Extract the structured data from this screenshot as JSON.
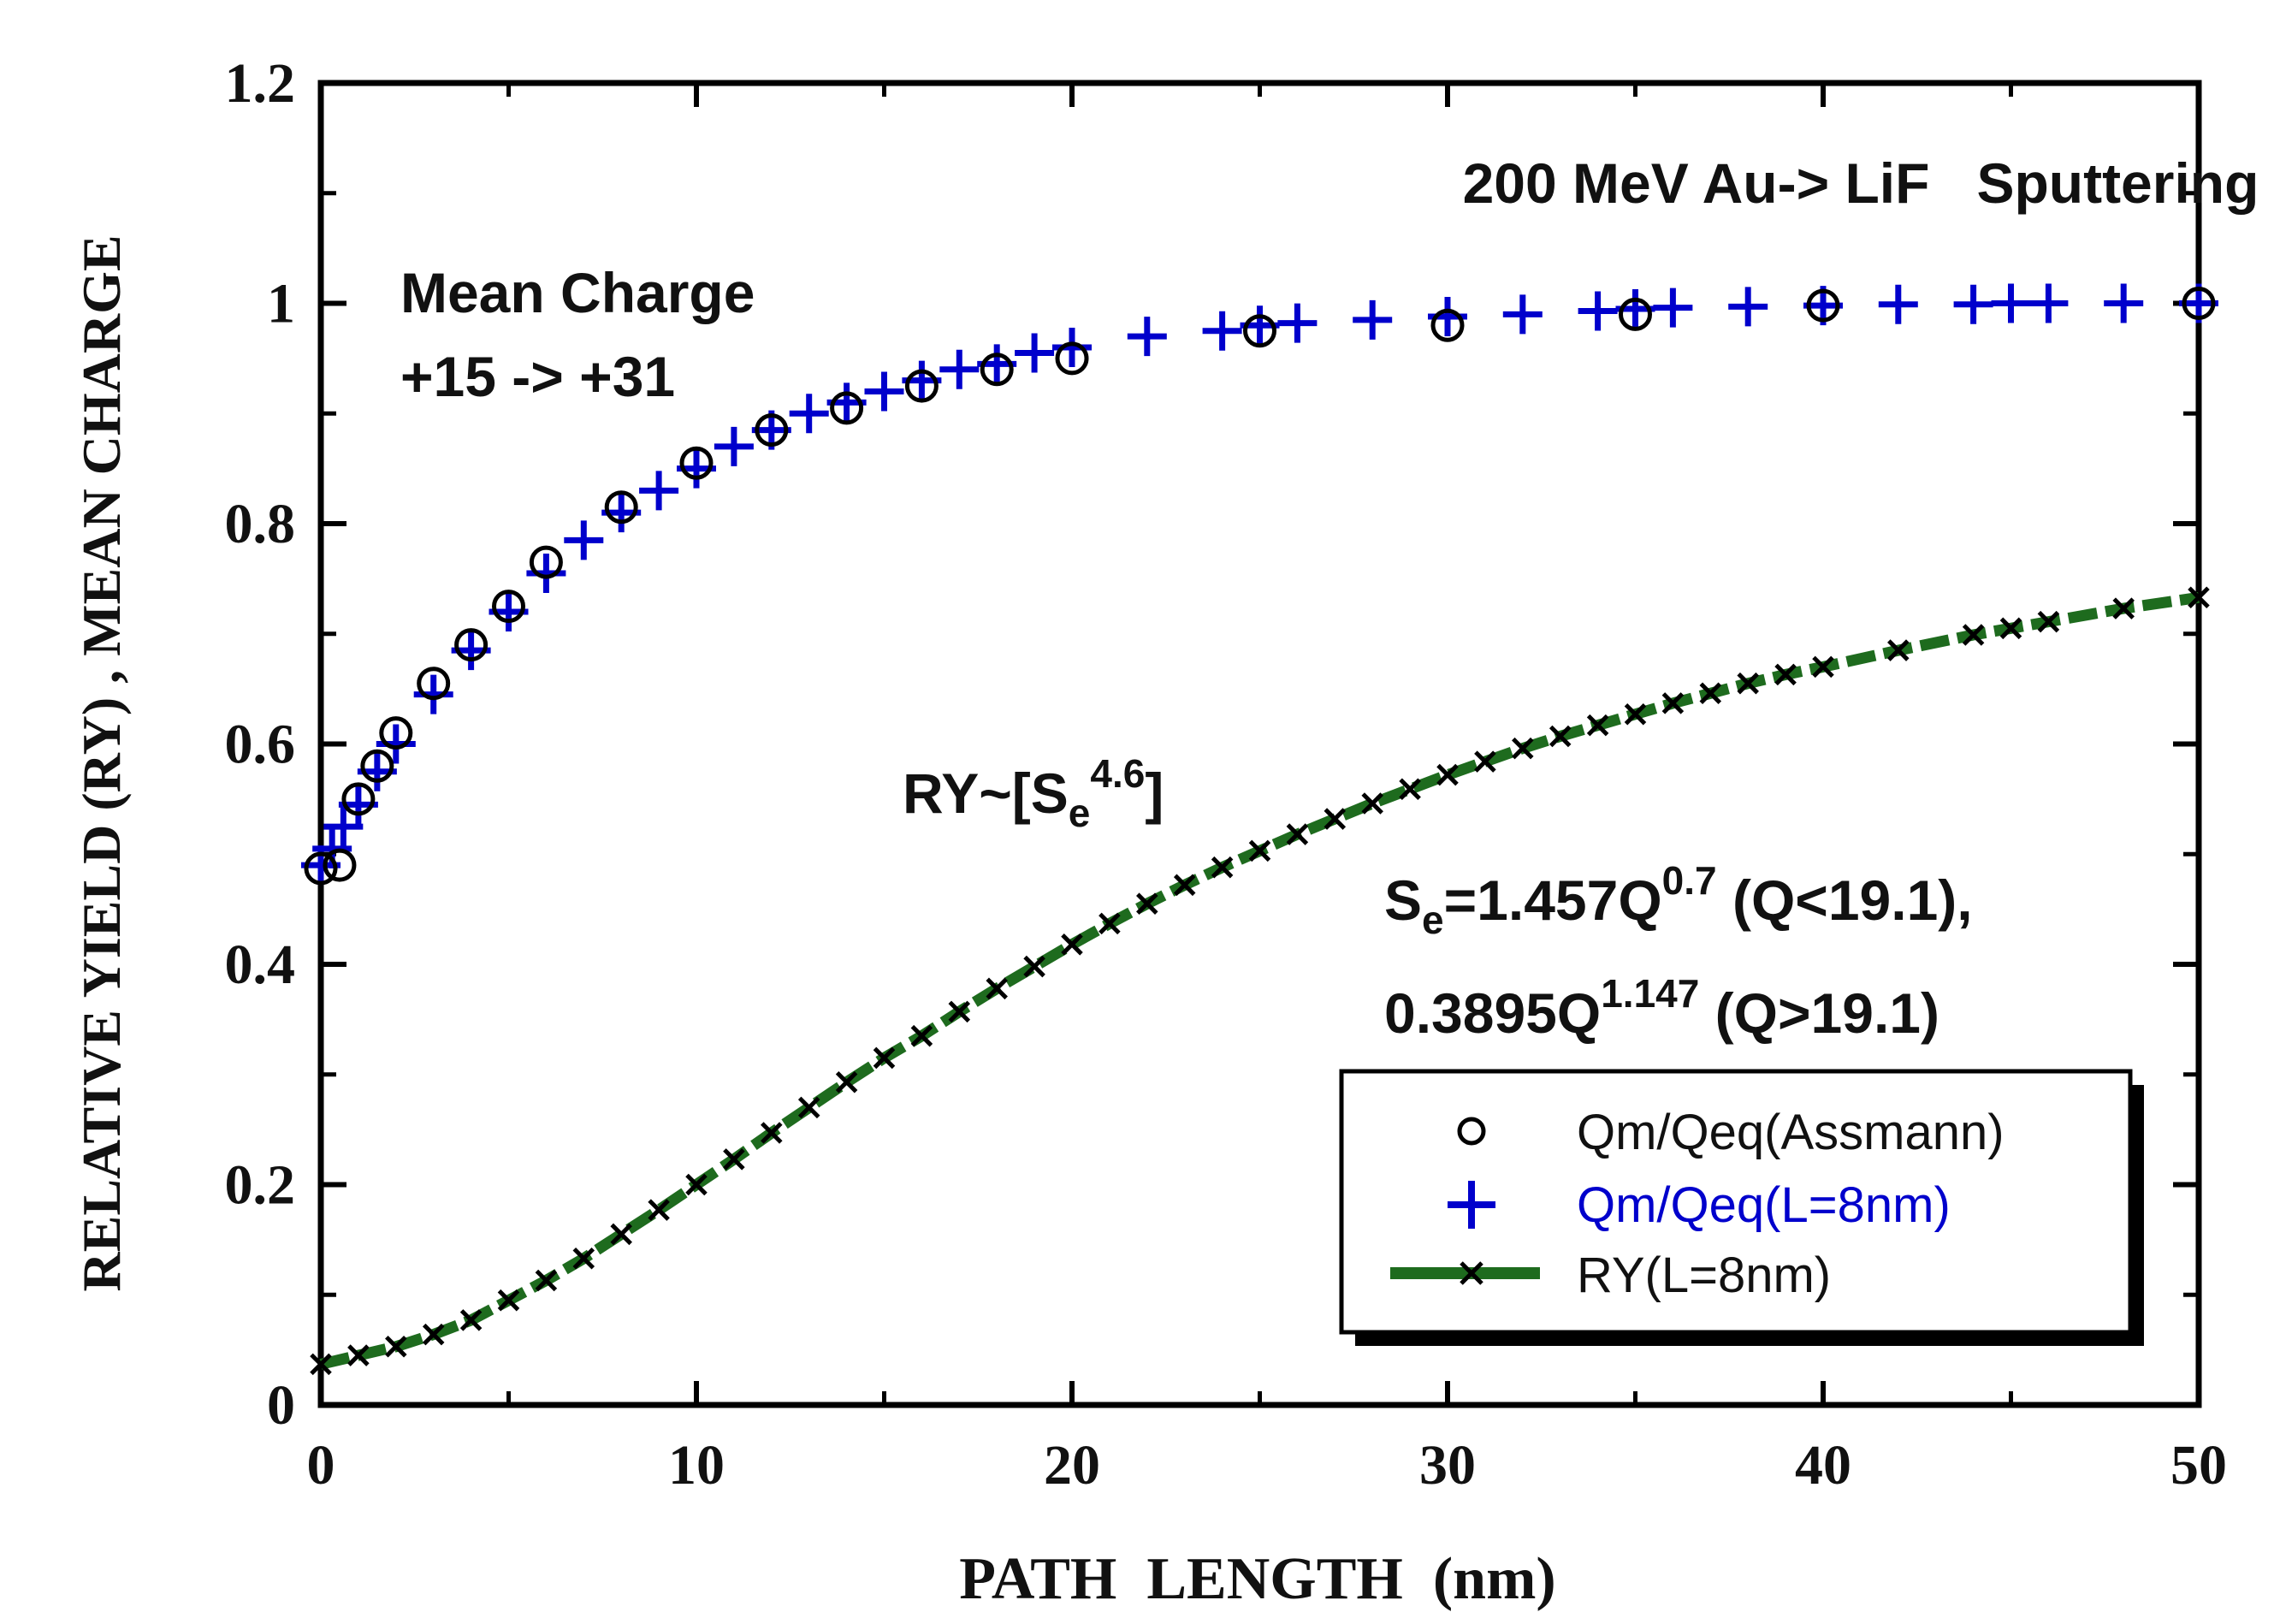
{
  "chart_data": {
    "type": "scatter",
    "title": "200 MeV Au-> LiF   Sputtering",
    "xlabel": "PATH  LENGTH  (nm)",
    "ylabel": "RELATIVE YIELD (RY) , MEAN CHARGE",
    "xlim": [
      0,
      50
    ],
    "ylim": [
      0,
      1.2
    ],
    "xticks": [
      "0",
      "10",
      "20",
      "30",
      "40",
      "50"
    ],
    "yticks": [
      "0",
      "0.2",
      "0.4",
      "0.6",
      "0.8",
      "1",
      "1.2"
    ],
    "grid": false,
    "legend_position": "bottom-right",
    "annotations": {
      "mean_charge_line1": "Mean Charge",
      "mean_charge_line2": "+15 -> +31",
      "ry_formula_prefix": "RY~[S",
      "ry_formula_sub": "e",
      "ry_formula_sup": "4.6",
      "ry_formula_suffix": "]",
      "se_line1_s": "S",
      "se_line1_sub": "e",
      "se_line1_mid": "=1.457Q",
      "se_line1_sup": "0.7",
      "se_line1_suffix": " (Q<19.1),",
      "se_line2_prefix": "0.3895Q",
      "se_line2_sup": "1.147",
      "se_line2_suffix": " (Q>19.1)"
    },
    "series": [
      {
        "name": "Qm/Qeq(Assmann)",
        "marker": "circle",
        "color": "#000000",
        "x": [
          0,
          0.5,
          1,
          1.5,
          2,
          3,
          4,
          5,
          6,
          8,
          10,
          12,
          14,
          16,
          18,
          20,
          25,
          30,
          35,
          40,
          50
        ],
        "y": [
          0.487,
          0.49,
          0.55,
          0.58,
          0.61,
          0.655,
          0.69,
          0.725,
          0.765,
          0.815,
          0.855,
          0.885,
          0.905,
          0.925,
          0.94,
          0.95,
          0.975,
          0.98,
          0.99,
          0.998,
          1.0
        ]
      },
      {
        "name": "Qm/Qeq(L=8nm)",
        "marker": "plus",
        "color": "#0000cc",
        "x": [
          0,
          0.3,
          0.6,
          1,
          1.5,
          2,
          3,
          4,
          5,
          6,
          7,
          8,
          9,
          10,
          11,
          12,
          13,
          14,
          15,
          16,
          17,
          18,
          19,
          20,
          22,
          24,
          25,
          26,
          28,
          30,
          32,
          34,
          35,
          36,
          38,
          40,
          42,
          44,
          45,
          46,
          48,
          50
        ],
        "y": [
          0.49,
          0.505,
          0.525,
          0.545,
          0.575,
          0.6,
          0.645,
          0.685,
          0.72,
          0.755,
          0.785,
          0.81,
          0.83,
          0.85,
          0.87,
          0.885,
          0.9,
          0.91,
          0.92,
          0.93,
          0.94,
          0.945,
          0.955,
          0.96,
          0.97,
          0.975,
          0.98,
          0.982,
          0.985,
          0.988,
          0.99,
          0.993,
          0.995,
          0.996,
          0.997,
          0.998,
          0.999,
          0.999,
          1.0,
          1.0,
          1.0,
          1.0
        ]
      },
      {
        "name": "RY(L=8nm)",
        "marker": "x",
        "line_color": "#1e6b1e",
        "color": "#000000",
        "x": [
          0,
          1,
          2,
          3,
          4,
          5,
          6,
          7,
          8,
          9,
          10,
          11,
          12,
          13,
          14,
          15,
          16,
          17,
          18,
          19,
          20,
          21,
          22,
          23,
          24,
          25,
          26,
          27,
          28,
          29,
          30,
          31,
          32,
          33,
          34,
          35,
          36,
          37,
          38,
          39,
          40,
          42,
          44,
          45,
          46,
          48,
          50
        ],
        "y": [
          0.037,
          0.045,
          0.053,
          0.064,
          0.077,
          0.095,
          0.113,
          0.133,
          0.155,
          0.177,
          0.2,
          0.223,
          0.247,
          0.27,
          0.293,
          0.315,
          0.335,
          0.357,
          0.378,
          0.398,
          0.418,
          0.437,
          0.455,
          0.472,
          0.488,
          0.503,
          0.518,
          0.532,
          0.546,
          0.559,
          0.572,
          0.584,
          0.596,
          0.607,
          0.617,
          0.627,
          0.637,
          0.646,
          0.655,
          0.663,
          0.67,
          0.685,
          0.699,
          0.705,
          0.711,
          0.723,
          0.733
        ]
      }
    ]
  }
}
